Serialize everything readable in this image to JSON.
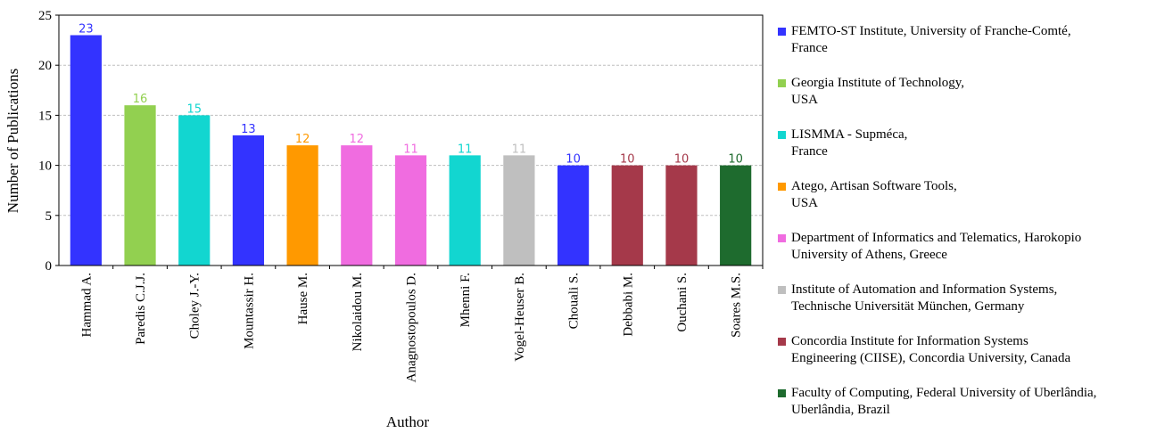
{
  "chart_data": {
    "type": "bar",
    "xlabel": "Author",
    "ylabel": "Number of Publications",
    "ylim": [
      0,
      25
    ],
    "yticks": [
      0,
      5,
      10,
      15,
      20,
      25
    ],
    "grid": true,
    "legend_position": "right",
    "categories": [
      "Hammad A.",
      "Paredis C.J.J.",
      "Choley J.-Y.",
      "Mountassir H.",
      "Hause M.",
      "Nikolaidou M.",
      "Anagnostopoulos D.",
      "Mhenni F.",
      "Vogel-Heuser B.",
      "Chouali S.",
      "Debbabi M.",
      "Ouchani S.",
      "Soares M.S."
    ],
    "values": [
      23,
      16,
      15,
      13,
      12,
      12,
      11,
      11,
      11,
      10,
      10,
      10,
      10
    ],
    "bar_affiliation": [
      0,
      1,
      2,
      0,
      3,
      4,
      4,
      2,
      5,
      0,
      6,
      6,
      7
    ],
    "affiliations": [
      {
        "lines": [
          "FEMTO-ST Institute, University of Franche-Comté,",
          "France"
        ],
        "color": "#3333ff"
      },
      {
        "lines": [
          "Georgia Institute of Technology,",
          "USA"
        ],
        "color": "#92d050"
      },
      {
        "lines": [
          "LISMMA - Supméca,",
          "France"
        ],
        "color": "#12d6d0"
      },
      {
        "lines": [
          "Atego, Artisan Software Tools,",
          "USA"
        ],
        "color": "#ff9900"
      },
      {
        "lines": [
          "Department of Informatics and Telematics, Harokopio",
          "University of Athens, Greece"
        ],
        "color": "#f06ce0"
      },
      {
        "lines": [
          "Institute of Automation and Information Systems,",
          "Technische Universität München, Germany"
        ],
        "color": "#bfbfbf"
      },
      {
        "lines": [
          "Concordia Institute for Information Systems",
          "Engineering (CIISE), Concordia University, Canada"
        ],
        "color": "#a5394a"
      },
      {
        "lines": [
          "Faculty of Computing, Federal University of Uberlândia,",
          "Uberlândia, Brazil"
        ],
        "color": "#1e6b2e"
      }
    ]
  }
}
